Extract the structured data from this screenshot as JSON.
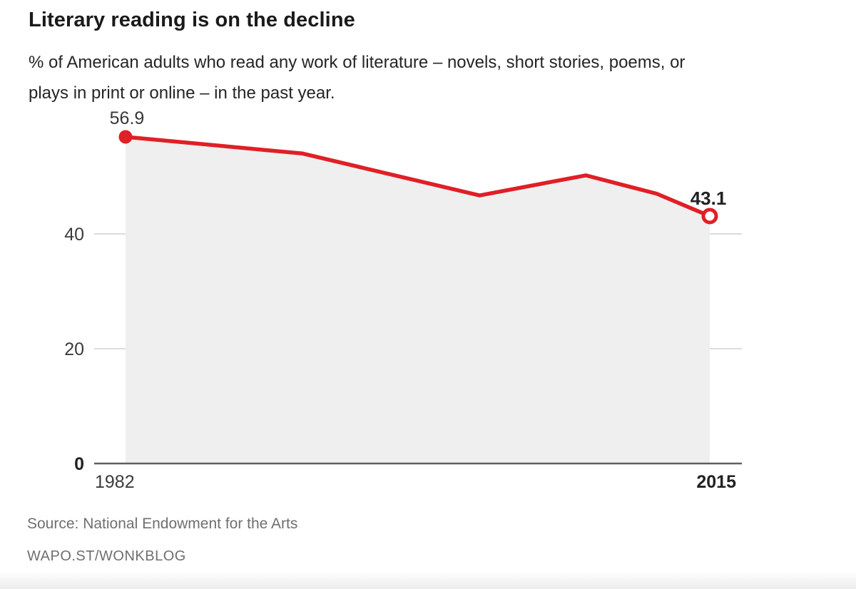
{
  "header": {
    "subtitle_lines": [
      "% of American adults who read any work of literature – novels, short stories, poems, or",
      "plays in print or online – in the past year."
    ]
  },
  "footer": {
    "source": "Source: National Endowment for the Arts",
    "credit": "WAPO.ST/WONKBLOG"
  },
  "chart_data": {
    "type": "line",
    "title": "Literary reading is on the decline",
    "subtitle": "% of American adults who read any work of literature – novels, short stories, poems, or plays in print or online – in the past year.",
    "x": [
      1982,
      1992,
      2002,
      2008,
      2012,
      2015
    ],
    "values": [
      56.9,
      54.0,
      46.7,
      50.2,
      47.0,
      43.1
    ],
    "xlim": [
      1982,
      2015
    ],
    "ylim": [
      0,
      60
    ],
    "yticks": [
      0,
      20,
      40
    ],
    "bold_yticks": [
      0
    ],
    "xtick_labels": [
      "1982",
      "2015"
    ],
    "bold_xtick_labels": [
      "2015"
    ],
    "first_point_label": "56.9",
    "last_point_label": "43.1",
    "grid": true,
    "legend": "none",
    "area_fill": true,
    "colors": {
      "line": "#e01f26",
      "area": "#efefef",
      "grid": "#dcdcdc",
      "baseline": "#5e5e5e",
      "tick_label": "#3b3b3b",
      "bold_label": "#222222",
      "point_label": "#383838"
    }
  }
}
